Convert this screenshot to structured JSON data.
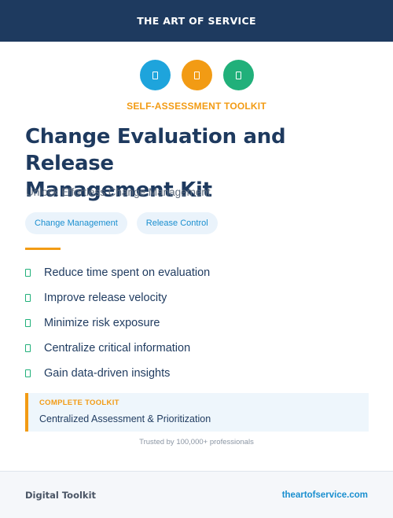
{
  "header": {
    "brand": "THE ART OF SERVICE"
  },
  "icons": [
    {
      "name": "document-icon",
      "color": "#1ea4dc"
    },
    {
      "name": "document-icon",
      "color": "#f29b14"
    },
    {
      "name": "document-icon",
      "color": "#21b07a"
    }
  ],
  "hero": {
    "kicker": "SELF-ASSESSMENT TOOLKIT",
    "title_line1": "Change Evaluation and Release",
    "title_line2": "Management Kit",
    "subtitle": "Unlock Effortless Change Management"
  },
  "tags": [
    "Change Management",
    "Release Control"
  ],
  "features": [
    "Reduce time spent on evaluation",
    "Improve release velocity",
    "Minimize risk exposure",
    "Centralize critical information",
    "Gain data-driven insights"
  ],
  "callout": {
    "label": "COMPLETE TOOLKIT",
    "text": "Centralized Assessment & Prioritization"
  },
  "trust": "Trusted by 100,000+ professionals",
  "footer": {
    "left": "Digital Toolkit",
    "right": "theartofservice.com"
  },
  "colors": {
    "navy": "#1e3a5f",
    "orange": "#f29b14",
    "blue": "#1ea4dc",
    "green": "#21b07a"
  }
}
